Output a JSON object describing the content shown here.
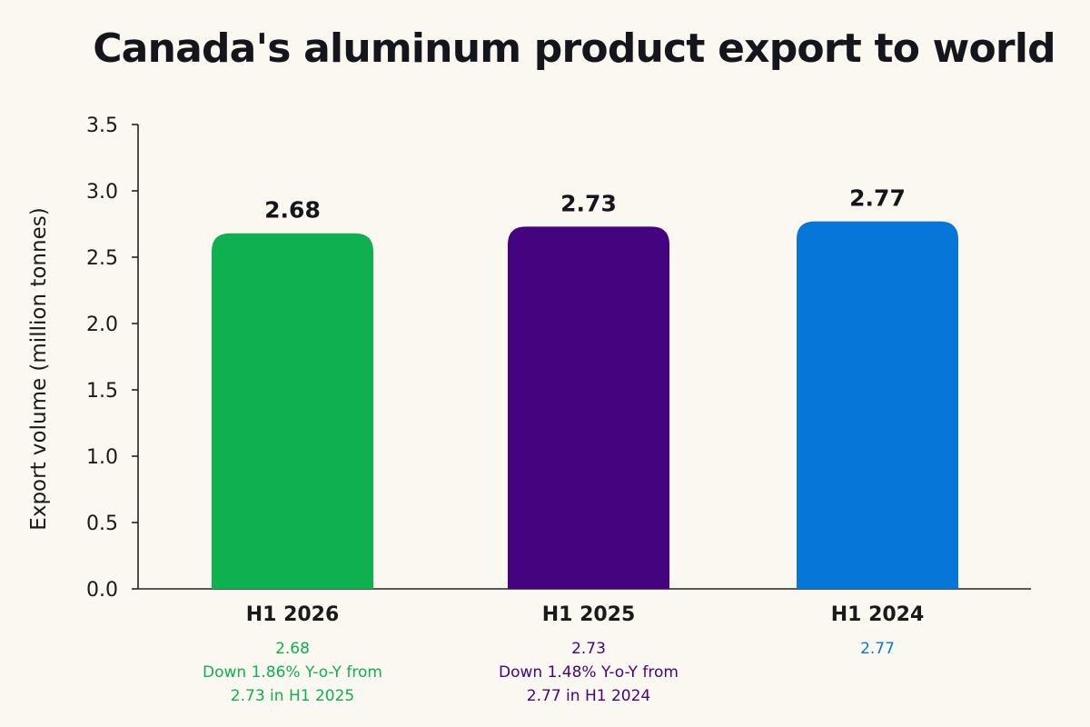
{
  "chart_data": {
    "type": "bar",
    "title": "Canada's aluminum product export to world",
    "xlabel": "",
    "ylabel": "Export volume (million tonnes)",
    "categories": [
      "H1 2026",
      "H1 2025",
      "H1 2024"
    ],
    "values": [
      2.68,
      2.73,
      2.77
    ],
    "value_labels": [
      "2.68",
      "2.73",
      "2.77"
    ],
    "colors": [
      "#0fb04f",
      "#44037f",
      "#0776d9"
    ],
    "ylim": [
      0,
      3.5
    ],
    "yticks": [
      "0.0",
      "0.5",
      "1.0",
      "1.5",
      "2.0",
      "2.5",
      "3.0",
      "3.5"
    ],
    "grid": false,
    "annotations": [
      [
        "2.68",
        "Down 1.86% Y-o-Y from",
        "2.73 in H1 2025"
      ],
      [
        "2.73",
        "Down 1.48% Y-o-Y from",
        "2.77 in H1 2024"
      ],
      [
        "2.77"
      ]
    ]
  }
}
